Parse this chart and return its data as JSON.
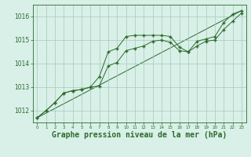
{
  "background_color": "#d8f0e8",
  "grid_color": "#a8c8b8",
  "line_color": "#2d6a2d",
  "marker_color": "#2d6a2d",
  "xlabel": "Graphe pression niveau de la mer (hPa)",
  "xlabel_fontsize": 7,
  "xlim": [
    -0.5,
    23.5
  ],
  "ylim": [
    1011.5,
    1016.5
  ],
  "yticks": [
    1012,
    1013,
    1014,
    1015,
    1016
  ],
  "xticks": [
    0,
    1,
    2,
    3,
    4,
    5,
    6,
    7,
    8,
    9,
    10,
    11,
    12,
    13,
    14,
    15,
    16,
    17,
    18,
    19,
    20,
    21,
    22,
    23
  ],
  "series1_x": [
    0,
    1,
    2,
    3,
    4,
    5,
    6,
    7,
    8,
    9,
    10,
    11,
    12,
    13,
    14,
    15,
    16,
    17,
    18,
    19,
    20,
    21,
    22,
    23
  ],
  "series1_y": [
    1011.7,
    1012.0,
    1012.35,
    1012.75,
    1012.85,
    1012.9,
    1013.0,
    1013.45,
    1014.5,
    1014.65,
    1015.15,
    1015.2,
    1015.2,
    1015.2,
    1015.2,
    1015.15,
    1014.7,
    1014.5,
    1014.95,
    1015.05,
    1015.15,
    1015.75,
    1016.1,
    1016.25
  ],
  "series2_x": [
    0,
    1,
    2,
    3,
    4,
    5,
    6,
    7,
    8,
    9,
    10,
    11,
    12,
    13,
    14,
    15,
    16,
    17,
    18,
    19,
    20,
    21,
    22,
    23
  ],
  "series2_y": [
    1011.7,
    1012.0,
    1012.35,
    1012.75,
    1012.85,
    1012.9,
    1013.0,
    1013.05,
    1013.9,
    1014.05,
    1014.55,
    1014.65,
    1014.75,
    1014.95,
    1015.0,
    1014.9,
    1014.55,
    1014.5,
    1014.75,
    1014.95,
    1015.0,
    1015.45,
    1015.8,
    1016.15
  ],
  "series3_x": [
    0,
    23
  ],
  "series3_y": [
    1011.7,
    1016.25
  ]
}
